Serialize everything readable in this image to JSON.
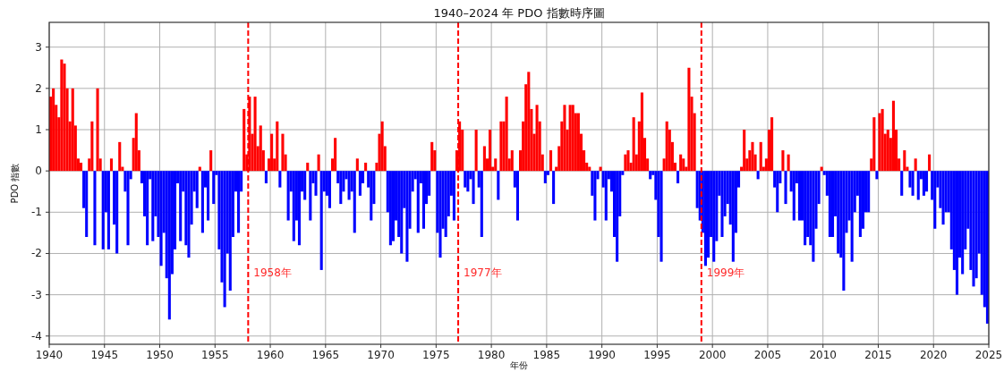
{
  "chart_data": {
    "type": "bar",
    "title": "1940–2024 年 PDO 指數時序圖",
    "xlabel": "年份",
    "ylabel": "PDO 指數",
    "xlim": [
      1940,
      2025
    ],
    "xticks": [
      1940,
      1945,
      1950,
      1955,
      1960,
      1965,
      1970,
      1975,
      1980,
      1985,
      1990,
      1995,
      2000,
      2005,
      2010,
      2015,
      2020,
      2025
    ],
    "ylim": [
      -4.2,
      3.6
    ],
    "yticks": [
      -4,
      -3,
      -2,
      -1,
      0,
      1,
      2,
      3
    ],
    "grid": true,
    "ref_lines": [
      {
        "axis": "x",
        "value": 1958,
        "label": "1958年",
        "color": "#ff0000",
        "line_style": "dashed"
      },
      {
        "axis": "x",
        "value": 1977,
        "label": "1977年",
        "color": "#ff0000",
        "line_style": "dashed"
      },
      {
        "axis": "x",
        "value": 1999,
        "label": "1999年",
        "color": "#ff0000",
        "line_style": "dashed"
      }
    ],
    "x": [
      1940,
      1940.25,
      1940.5,
      1940.75,
      1941,
      1941.25,
      1941.5,
      1941.75,
      1942,
      1942.25,
      1942.5,
      1942.75,
      1943,
      1943.25,
      1943.5,
      1943.75,
      1944,
      1944.25,
      1944.5,
      1944.75,
      1945,
      1945.25,
      1945.5,
      1945.75,
      1946,
      1946.25,
      1946.5,
      1946.75,
      1947,
      1947.25,
      1947.5,
      1947.75,
      1948,
      1948.25,
      1948.5,
      1948.75,
      1949,
      1949.25,
      1949.5,
      1949.75,
      1950,
      1950.25,
      1950.5,
      1950.75,
      1951,
      1951.25,
      1951.5,
      1951.75,
      1952,
      1952.25,
      1952.5,
      1952.75,
      1953,
      1953.25,
      1953.5,
      1953.75,
      1954,
      1954.25,
      1954.5,
      1954.75,
      1955,
      1955.25,
      1955.5,
      1955.75,
      1956,
      1956.25,
      1956.5,
      1956.75,
      1957,
      1957.25,
      1957.5,
      1957.75,
      1958,
      1958.25,
      1958.5,
      1958.75,
      1959,
      1959.25,
      1959.5,
      1959.75,
      1960,
      1960.25,
      1960.5,
      1960.75,
      1961,
      1961.25,
      1961.5,
      1961.75,
      1962,
      1962.25,
      1962.5,
      1962.75,
      1963,
      1963.25,
      1963.5,
      1963.75,
      1964,
      1964.25,
      1964.5,
      1964.75,
      1965,
      1965.25,
      1965.5,
      1965.75,
      1966,
      1966.25,
      1966.5,
      1966.75,
      1967,
      1967.25,
      1967.5,
      1967.75,
      1968,
      1968.25,
      1968.5,
      1968.75,
      1969,
      1969.25,
      1969.5,
      1969.75,
      1970,
      1970.25,
      1970.5,
      1970.75,
      1971,
      1971.25,
      1971.5,
      1971.75,
      1972,
      1972.25,
      1972.5,
      1972.75,
      1973,
      1973.25,
      1973.5,
      1973.75,
      1974,
      1974.25,
      1974.5,
      1974.75,
      1975,
      1975.25,
      1975.5,
      1975.75,
      1976,
      1976.25,
      1976.5,
      1976.75,
      1977,
      1977.25,
      1977.5,
      1977.75,
      1978,
      1978.25,
      1978.5,
      1978.75,
      1979,
      1979.25,
      1979.5,
      1979.75,
      1980,
      1980.25,
      1980.5,
      1980.75,
      1981,
      1981.25,
      1981.5,
      1981.75,
      1982,
      1982.25,
      1982.5,
      1982.75,
      1983,
      1983.25,
      1983.5,
      1983.75,
      1984,
      1984.25,
      1984.5,
      1984.75,
      1985,
      1985.25,
      1985.5,
      1985.75,
      1986,
      1986.25,
      1986.5,
      1986.75,
      1987,
      1987.25,
      1987.5,
      1987.75,
      1988,
      1988.25,
      1988.5,
      1988.75,
      1989,
      1989.25,
      1989.5,
      1989.75,
      1990,
      1990.25,
      1990.5,
      1990.75,
      1991,
      1991.25,
      1991.5,
      1991.75,
      1992,
      1992.25,
      1992.5,
      1992.75,
      1993,
      1993.25,
      1993.5,
      1993.75,
      1994,
      1994.25,
      1994.5,
      1994.75,
      1995,
      1995.25,
      1995.5,
      1995.75,
      1996,
      1996.25,
      1996.5,
      1996.75,
      1997,
      1997.25,
      1997.5,
      1997.75,
      1998,
      1998.25,
      1998.5,
      1998.75,
      1999,
      1999.25,
      1999.5,
      1999.75,
      2000,
      2000.25,
      2000.5,
      2000.75,
      2001,
      2001.25,
      2001.5,
      2001.75,
      2002,
      2002.25,
      2002.5,
      2002.75,
      2003,
      2003.25,
      2003.5,
      2003.75,
      2004,
      2004.25,
      2004.5,
      2004.75,
      2005,
      2005.25,
      2005.5,
      2005.75,
      2006,
      2006.25,
      2006.5,
      2006.75,
      2007,
      2007.25,
      2007.5,
      2007.75,
      2008,
      2008.25,
      2008.5,
      2008.75,
      2009,
      2009.25,
      2009.5,
      2009.75,
      2010,
      2010.25,
      2010.5,
      2010.75,
      2011,
      2011.25,
      2011.5,
      2011.75,
      2012,
      2012.25,
      2012.5,
      2012.75,
      2013,
      2013.25,
      2013.5,
      2013.75,
      2014,
      2014.25,
      2014.5,
      2014.75,
      2015,
      2015.25,
      2015.5,
      2015.75,
      2016,
      2016.25,
      2016.5,
      2016.75,
      2017,
      2017.25,
      2017.5,
      2017.75,
      2018,
      2018.25,
      2018.5,
      2018.75,
      2019,
      2019.25,
      2019.5,
      2019.75,
      2020,
      2020.25,
      2020.5,
      2020.75,
      2021,
      2021.25,
      2021.5,
      2021.75,
      2022,
      2022.25,
      2022.5,
      2022.75,
      2023,
      2023.25,
      2023.5,
      2023.75,
      2024,
      2024.25,
      2024.5,
      2024.75
    ],
    "values": [
      1.8,
      2.0,
      1.6,
      1.3,
      2.7,
      2.6,
      2.0,
      1.2,
      2.0,
      1.1,
      0.3,
      0.2,
      -0.9,
      -1.6,
      0.3,
      1.2,
      -1.8,
      2.0,
      0.3,
      -1.9,
      -1.0,
      -1.9,
      0.3,
      -1.3,
      -2.0,
      0.7,
      0.1,
      -0.5,
      -1.8,
      -0.2,
      0.8,
      1.4,
      0.5,
      -0.3,
      -1.1,
      -1.8,
      -0.2,
      -1.7,
      -1.1,
      -1.6,
      -2.3,
      -1.5,
      -2.6,
      -3.6,
      -2.5,
      -1.9,
      -0.3,
      -1.7,
      -0.5,
      -1.8,
      -2.1,
      -1.3,
      -0.5,
      -0.9,
      0.1,
      -1.5,
      -0.4,
      -1.2,
      0.5,
      -0.8,
      -0.1,
      -1.9,
      -2.7,
      -3.3,
      -2.0,
      -2.9,
      -1.6,
      -0.5,
      -1.5,
      -0.5,
      1.5,
      0.4,
      1.8,
      0.9,
      1.8,
      0.6,
      1.1,
      0.5,
      -0.3,
      0.3,
      0.9,
      0.3,
      1.2,
      -0.4,
      0.9,
      0.4,
      -1.2,
      -0.5,
      -1.7,
      -1.2,
      -1.8,
      -0.5,
      -0.7,
      0.2,
      -1.2,
      -0.3,
      -0.6,
      0.4,
      -2.4,
      -0.5,
      -0.6,
      -0.9,
      0.3,
      0.8,
      -0.3,
      -0.8,
      -0.5,
      -0.2,
      -0.7,
      -0.5,
      -1.5,
      0.3,
      -0.6,
      -0.3,
      0.2,
      -0.4,
      -1.2,
      -0.8,
      0.2,
      0.9,
      1.2,
      0.6,
      -1.0,
      -1.8,
      -1.7,
      -1.2,
      -1.6,
      -2.0,
      -0.9,
      -2.2,
      -1.4,
      -0.5,
      -0.2,
      -1.5,
      -0.3,
      -1.4,
      -0.8,
      -0.6,
      0.7,
      0.5,
      -1.5,
      -2.1,
      -1.4,
      -1.6,
      -1.1,
      -0.6,
      -1.2,
      0.5,
      1.2,
      1.0,
      -0.4,
      -0.5,
      -0.2,
      -0.8,
      1.0,
      -0.4,
      -1.6,
      0.6,
      0.3,
      1.0,
      0.1,
      0.3,
      -0.7,
      1.2,
      1.2,
      1.8,
      0.3,
      0.5,
      -0.4,
      -1.2,
      0.5,
      1.2,
      2.1,
      2.4,
      1.5,
      0.9,
      1.6,
      1.2,
      0.4,
      -0.3,
      -0.1,
      0.5,
      -0.8,
      0.1,
      0.6,
      1.2,
      1.6,
      1.0,
      1.6,
      1.6,
      1.4,
      1.4,
      0.9,
      0.5,
      0.2,
      0.1,
      -0.6,
      -1.2,
      -0.2,
      0.1,
      -0.4,
      -1.2,
      -0.2,
      -0.5,
      -1.6,
      -2.2,
      -1.1,
      -0.1,
      0.4,
      0.5,
      0.2,
      1.3,
      0.4,
      1.2,
      1.9,
      0.8,
      0.3,
      -0.2,
      -0.1,
      -0.7,
      -1.6,
      -2.2,
      0.3,
      1.2,
      1.0,
      0.7,
      0.2,
      -0.3,
      0.4,
      0.3,
      0.1,
      2.5,
      1.8,
      1.4,
      -0.9,
      -1.2,
      -1.5,
      -2.3,
      -2.1,
      -1.6,
      -2.2,
      -1.7,
      -0.6,
      -1.6,
      -1.1,
      -0.8,
      -1.3,
      -2.2,
      -1.5,
      -0.4,
      0.1,
      1.0,
      0.3,
      0.5,
      0.7,
      0.4,
      -0.2,
      0.7,
      0.1,
      0.3,
      1.0,
      1.3,
      -0.4,
      -1.0,
      -0.3,
      0.5,
      -0.8,
      0.4,
      -0.5,
      -1.2,
      -0.3,
      -1.2,
      -1.2,
      -1.8,
      -1.6,
      -1.8,
      -2.2,
      -1.4,
      -0.8,
      0.1,
      -0.1,
      -0.6,
      -1.6,
      -1.6,
      -1.1,
      -2.0,
      -2.1,
      -2.9,
      -1.5,
      -1.2,
      -2.2,
      -1.0,
      -0.6,
      -1.6,
      -1.4,
      -1.0,
      -1.0,
      0.3,
      1.3,
      -0.2,
      1.4,
      1.5,
      0.9,
      1.0,
      0.8,
      1.7,
      1.0,
      0.3,
      -0.6,
      0.5,
      0.1,
      -0.4,
      -0.6,
      0.3,
      -0.7,
      -0.2,
      -0.6,
      -0.5,
      0.4,
      -0.7,
      -1.4,
      -0.4,
      -0.9,
      -1.3,
      -1.0,
      -1.0,
      -1.9,
      -2.4,
      -3.0,
      -2.1,
      -2.5,
      -1.9,
      -1.4,
      -2.4,
      -2.8,
      -2.6,
      -2.0,
      -3.0,
      -3.3,
      -3.7
    ],
    "colors": [
      "#ff0000",
      "#ff0000",
      "#ff0000",
      "#ff0000",
      "#ff0000",
      "#ff0000",
      "#ff0000",
      "#ff0000",
      "#ff0000",
      "#ff0000",
      "#ff0000",
      "#ff0000",
      "#0000ff",
      "#0000ff",
      "#ff0000",
      "#ff0000",
      "#0000ff",
      "#ff0000",
      "#ff0000",
      "#0000ff",
      "#0000ff",
      "#0000ff",
      "#ff0000",
      "#0000ff",
      "#0000ff",
      "#ff0000",
      "#ff0000",
      "#0000ff",
      "#0000ff",
      "#0000ff",
      "#ff0000",
      "#ff0000",
      "#ff0000",
      "#0000ff",
      "#0000ff",
      "#0000ff",
      "#0000ff",
      "#0000ff",
      "#0000ff",
      "#0000ff",
      "#0000ff",
      "#0000ff",
      "#0000ff",
      "#0000ff",
      "#0000ff",
      "#0000ff",
      "#0000ff",
      "#0000ff",
      "#0000ff",
      "#0000ff",
      "#0000ff",
      "#0000ff",
      "#0000ff",
      "#0000ff",
      "#ff0000",
      "#0000ff",
      "#0000ff",
      "#0000ff",
      "#ff0000",
      "#0000ff",
      "#0000ff",
      "#0000ff",
      "#0000ff",
      "#0000ff",
      "#0000ff",
      "#0000ff",
      "#0000ff",
      "#0000ff",
      "#0000ff",
      "#0000ff",
      "#ff0000",
      "#ff0000",
      "#ff0000",
      "#ff0000",
      "#ff0000",
      "#ff0000",
      "#ff0000",
      "#ff0000",
      "#0000ff",
      "#ff0000",
      "#ff0000",
      "#ff0000",
      "#ff0000",
      "#0000ff",
      "#ff0000",
      "#ff0000",
      "#0000ff",
      "#0000ff",
      "#0000ff",
      "#0000ff",
      "#0000ff",
      "#0000ff",
      "#0000ff",
      "#ff0000",
      "#0000ff",
      "#0000ff",
      "#0000ff",
      "#ff0000",
      "#0000ff",
      "#0000ff",
      "#0000ff",
      "#0000ff",
      "#ff0000",
      "#ff0000",
      "#0000ff",
      "#0000ff",
      "#0000ff",
      "#0000ff",
      "#0000ff",
      "#0000ff",
      "#0000ff",
      "#ff0000",
      "#0000ff",
      "#0000ff",
      "#ff0000",
      "#0000ff",
      "#0000ff",
      "#0000ff",
      "#ff0000",
      "#ff0000",
      "#ff0000",
      "#ff0000",
      "#0000ff",
      "#0000ff",
      "#0000ff",
      "#0000ff",
      "#0000ff",
      "#0000ff",
      "#0000ff",
      "#0000ff",
      "#0000ff",
      "#0000ff",
      "#0000ff",
      "#0000ff",
      "#0000ff",
      "#0000ff",
      "#0000ff",
      "#0000ff",
      "#ff0000",
      "#ff0000",
      "#0000ff",
      "#0000ff",
      "#0000ff",
      "#0000ff",
      "#0000ff",
      "#0000ff",
      "#0000ff",
      "#ff0000",
      "#ff0000",
      "#ff0000",
      "#0000ff",
      "#0000ff",
      "#0000ff",
      "#0000ff",
      "#ff0000",
      "#0000ff",
      "#0000ff",
      "#ff0000",
      "#ff0000",
      "#ff0000",
      "#ff0000",
      "#ff0000",
      "#0000ff",
      "#ff0000",
      "#ff0000",
      "#ff0000",
      "#ff0000",
      "#ff0000",
      "#0000ff",
      "#0000ff",
      "#ff0000",
      "#ff0000",
      "#ff0000",
      "#ff0000",
      "#ff0000",
      "#ff0000",
      "#ff0000",
      "#ff0000",
      "#ff0000",
      "#0000ff",
      "#0000ff",
      "#ff0000",
      "#0000ff",
      "#ff0000",
      "#ff0000",
      "#ff0000",
      "#ff0000",
      "#ff0000",
      "#ff0000",
      "#ff0000",
      "#ff0000",
      "#ff0000",
      "#ff0000",
      "#ff0000",
      "#ff0000",
      "#ff0000",
      "#0000ff",
      "#0000ff",
      "#0000ff",
      "#ff0000",
      "#0000ff",
      "#0000ff",
      "#0000ff",
      "#0000ff",
      "#0000ff",
      "#0000ff",
      "#0000ff",
      "#0000ff",
      "#ff0000",
      "#ff0000",
      "#ff0000",
      "#ff0000",
      "#ff0000",
      "#ff0000",
      "#ff0000",
      "#ff0000",
      "#ff0000",
      "#0000ff",
      "#0000ff",
      "#0000ff",
      "#0000ff",
      "#0000ff",
      "#ff0000",
      "#ff0000",
      "#ff0000",
      "#ff0000",
      "#ff0000",
      "#0000ff",
      "#ff0000",
      "#ff0000",
      "#ff0000",
      "#ff0000",
      "#ff0000",
      "#ff0000",
      "#0000ff",
      "#0000ff",
      "#0000ff",
      "#0000ff",
      "#0000ff",
      "#0000ff",
      "#0000ff",
      "#0000ff",
      "#0000ff",
      "#0000ff",
      "#0000ff",
      "#0000ff",
      "#0000ff",
      "#0000ff",
      "#0000ff",
      "#0000ff",
      "#ff0000",
      "#ff0000",
      "#ff0000",
      "#ff0000",
      "#ff0000",
      "#ff0000",
      "#0000ff",
      "#ff0000",
      "#ff0000",
      "#ff0000",
      "#ff0000",
      "#ff0000",
      "#0000ff",
      "#0000ff",
      "#0000ff",
      "#ff0000",
      "#0000ff",
      "#ff0000",
      "#0000ff",
      "#0000ff",
      "#0000ff",
      "#0000ff",
      "#0000ff",
      "#0000ff",
      "#0000ff",
      "#0000ff",
      "#0000ff",
      "#0000ff",
      "#0000ff",
      "#ff0000",
      "#0000ff",
      "#0000ff",
      "#0000ff",
      "#0000ff",
      "#0000ff",
      "#0000ff",
      "#0000ff",
      "#0000ff",
      "#0000ff",
      "#0000ff",
      "#0000ff",
      "#0000ff",
      "#0000ff",
      "#0000ff",
      "#0000ff",
      "#0000ff",
      "#0000ff",
      "#ff0000",
      "#ff0000",
      "#0000ff",
      "#ff0000",
      "#ff0000",
      "#ff0000",
      "#ff0000",
      "#ff0000",
      "#ff0000",
      "#ff0000",
      "#ff0000",
      "#0000ff",
      "#ff0000",
      "#ff0000",
      "#0000ff",
      "#0000ff",
      "#ff0000",
      "#0000ff",
      "#0000ff",
      "#0000ff",
      "#0000ff",
      "#ff0000",
      "#0000ff",
      "#0000ff",
      "#0000ff",
      "#0000ff",
      "#0000ff",
      "#0000ff",
      "#0000ff",
      "#0000ff",
      "#0000ff",
      "#0000ff",
      "#0000ff",
      "#0000ff",
      "#0000ff",
      "#0000ff",
      "#0000ff",
      "#0000ff",
      "#0000ff",
      "#0000ff",
      "#0000ff",
      "#0000ff",
      "#0000ff"
    ]
  }
}
